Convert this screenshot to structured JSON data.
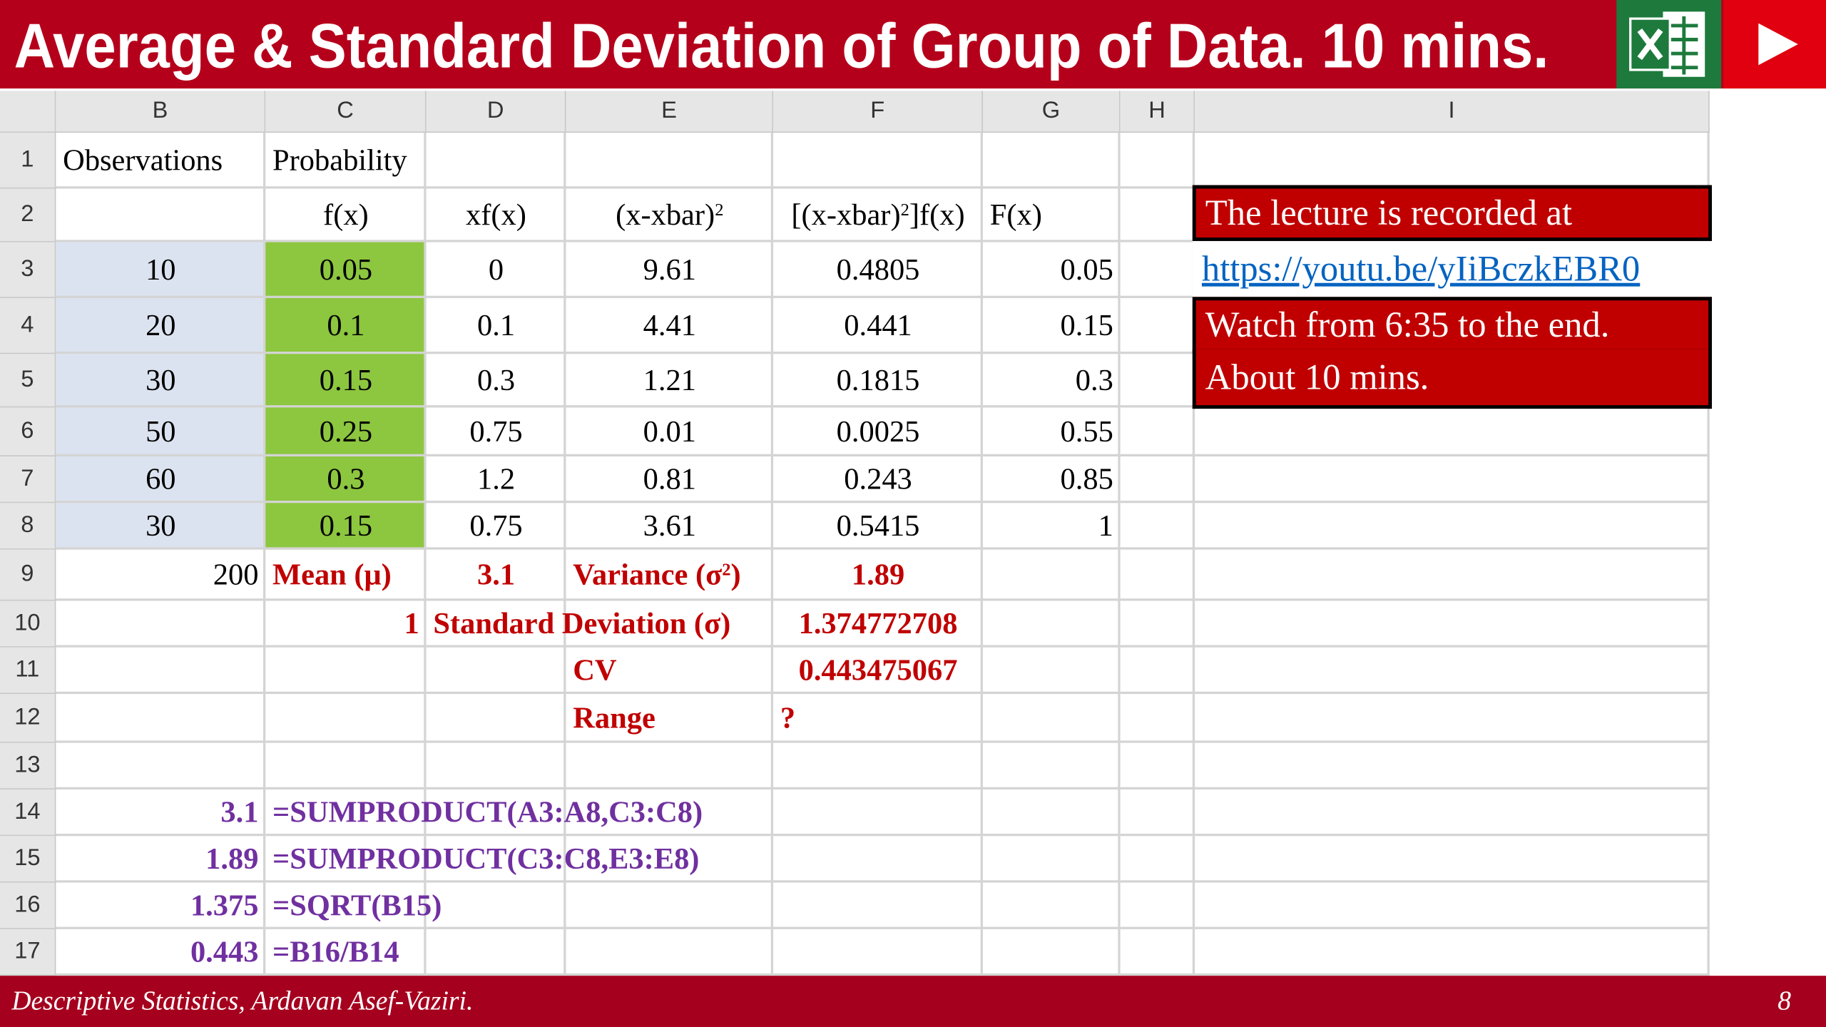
{
  "header": {
    "title": "Average & Standard Deviation of Group of Data. 10 mins."
  },
  "sheet": {
    "columns": [
      "B",
      "C",
      "D",
      "E",
      "F",
      "G",
      "H",
      "I"
    ],
    "rows": [
      {
        "n": "1",
        "cells": {
          "B": "Observations",
          "C": "Probability"
        }
      },
      {
        "n": "2",
        "cells": {
          "C": "f(x)",
          "D": "xf(x)",
          "E": {
            "pre": "(x-xbar)",
            "sup": "2"
          },
          "F": {
            "pre": "[(x-xbar)",
            "sup": "2",
            "post": "]f(x)"
          },
          "G": "F(x)"
        }
      },
      {
        "n": "3",
        "cells": {
          "B": "10",
          "C": "0.05",
          "D": "0",
          "E": "9.61",
          "F": "0.4805",
          "G": "0.05"
        }
      },
      {
        "n": "4",
        "cells": {
          "B": "20",
          "C": "0.1",
          "D": "0.1",
          "E": "4.41",
          "F": "0.441",
          "G": "0.15"
        }
      },
      {
        "n": "5",
        "cells": {
          "B": "30",
          "C": "0.15",
          "D": "0.3",
          "E": "1.21",
          "F": "0.1815",
          "G": "0.3"
        }
      },
      {
        "n": "6",
        "cells": {
          "B": "50",
          "C": "0.25",
          "D": "0.75",
          "E": "0.01",
          "F": "0.0025",
          "G": "0.55"
        }
      },
      {
        "n": "7",
        "cells": {
          "B": "60",
          "C": "0.3",
          "D": "1.2",
          "E": "0.81",
          "F": "0.243",
          "G": "0.85"
        }
      },
      {
        "n": "8",
        "cells": {
          "B": "30",
          "C": "0.15",
          "D": "0.75",
          "E": "3.61",
          "F": "0.5415",
          "G": "1"
        }
      },
      {
        "n": "9",
        "cells": {
          "B": "200",
          "C": "Mean (μ)",
          "D": "3.1",
          "E": {
            "pre": "Variance (σ",
            "sup": "2",
            "post": ")"
          },
          "F": "1.89"
        }
      },
      {
        "n": "10",
        "cells": {
          "C": "1",
          "D": "Standard Deviation (σ)",
          "F": "1.374772708"
        }
      },
      {
        "n": "11",
        "cells": {
          "E": "CV",
          "F": "0.443475067"
        }
      },
      {
        "n": "12",
        "cells": {
          "E": "Range",
          "F": "?"
        }
      },
      {
        "n": "13",
        "cells": {}
      },
      {
        "n": "14",
        "cells": {
          "B": "3.1",
          "C": "=SUMPRODUCT(A3:A8,C3:C8)"
        }
      },
      {
        "n": "15",
        "cells": {
          "B": "1.89",
          "C": "=SUMPRODUCT(C3:C8,E3:E8)"
        }
      },
      {
        "n": "16",
        "cells": {
          "B": "1.375",
          "C": "=SQRT(B15)"
        }
      },
      {
        "n": "17",
        "cells": {
          "B": "0.443",
          "C": "=B16/B14"
        }
      }
    ]
  },
  "notes": {
    "line1": "The lecture is recorded at",
    "link": "https://youtu.be/yIiBczkEBR0",
    "line2": "Watch from 6:35 to the end.",
    "line3": "About 10 mins."
  },
  "footer": {
    "text": "Descriptive Statistics, Ardavan Asef-Vaziri.",
    "page": "8"
  }
}
